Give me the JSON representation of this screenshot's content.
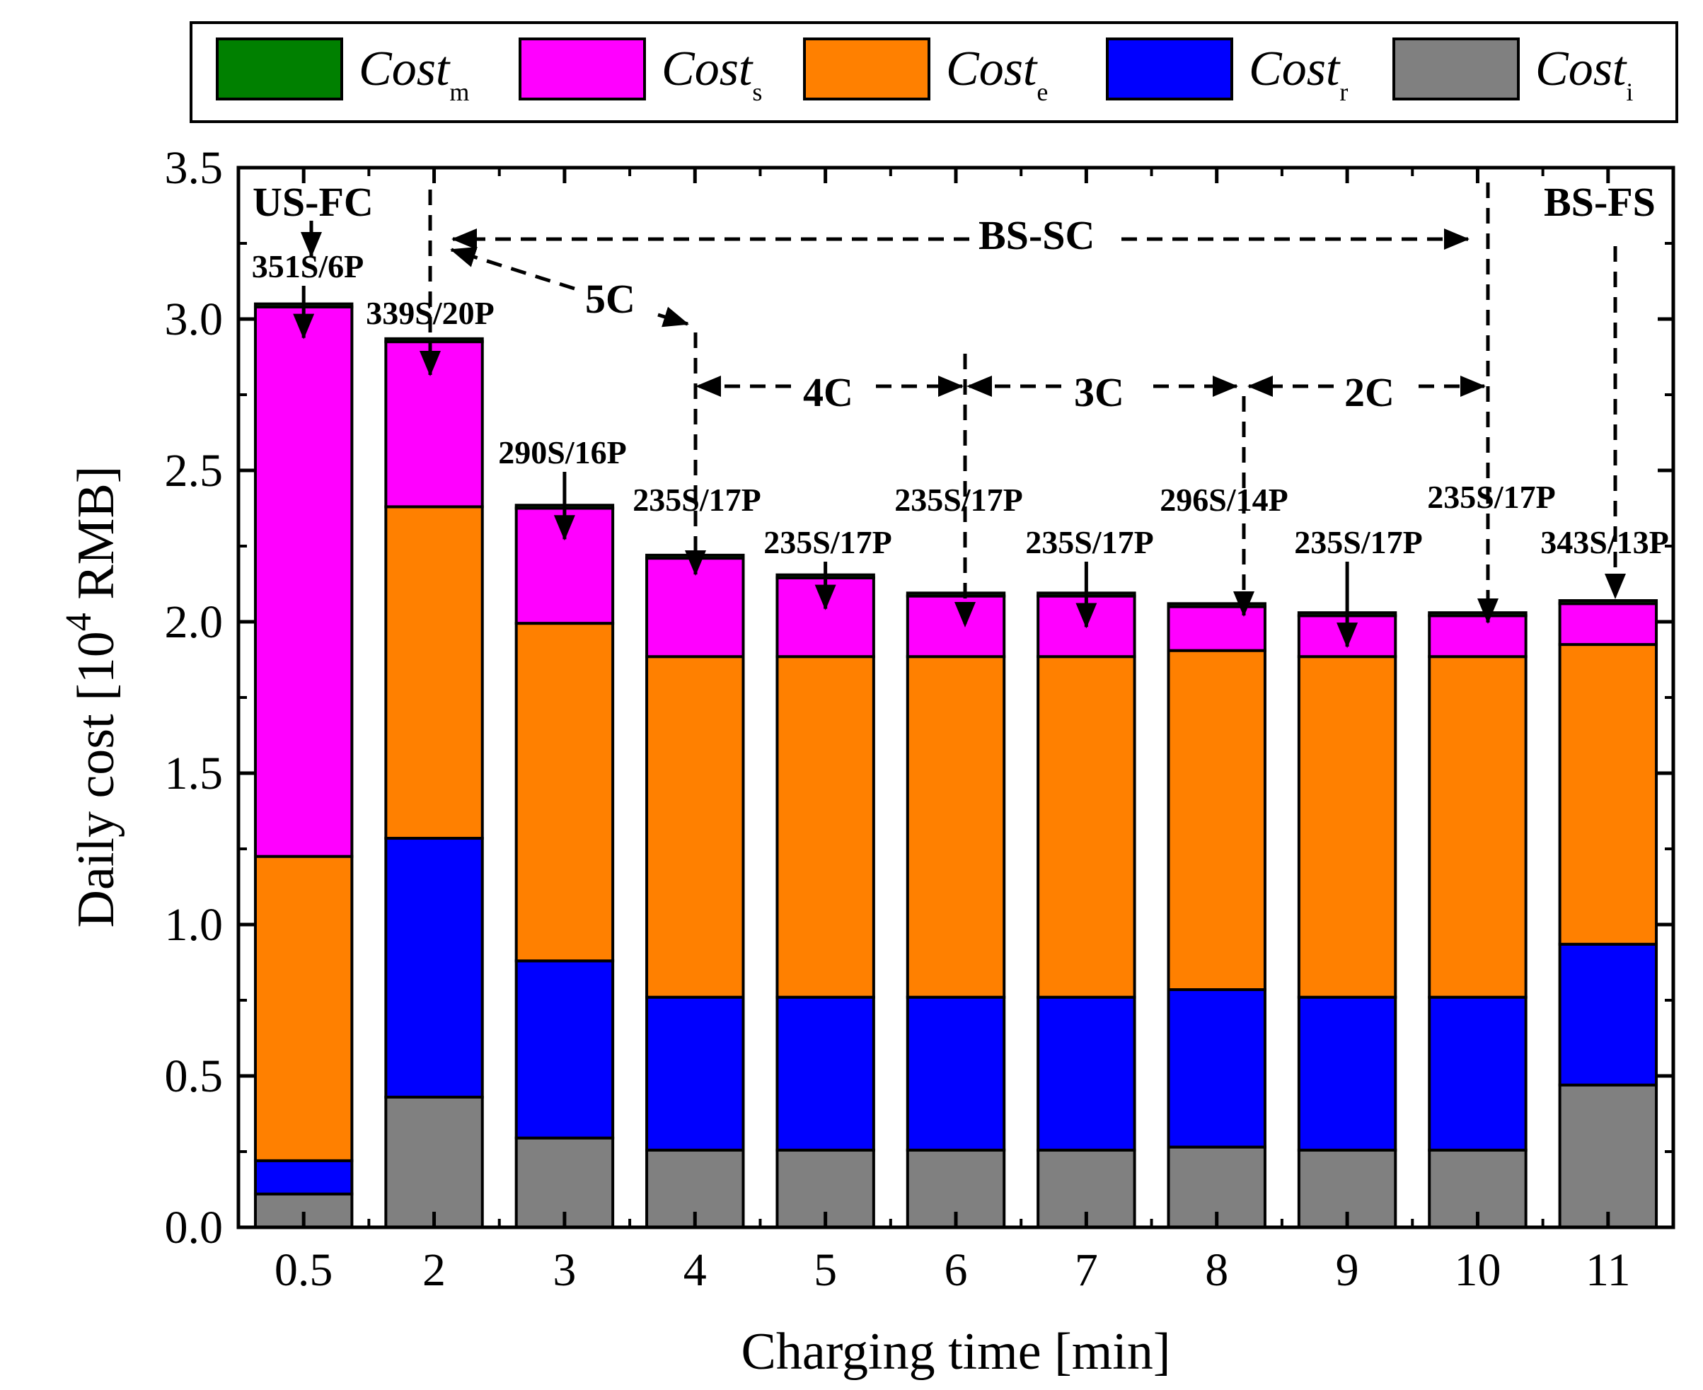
{
  "chart_data": {
    "type": "bar",
    "stacked": true,
    "title": "",
    "xlabel": "Charging time [min]",
    "ylabel_prefix": "Daily cost [10",
    "ylabel_exp": "4",
    "ylabel_suffix": " RMB]",
    "ylim": [
      0,
      3.5
    ],
    "yticks": [
      "0.0",
      "0.5",
      "1.0",
      "1.5",
      "2.0",
      "2.5",
      "3.0",
      "3.5"
    ],
    "categories": [
      "0.5",
      "2",
      "3",
      "4",
      "5",
      "6",
      "7",
      "8",
      "9",
      "10",
      "11"
    ],
    "legend_position": "top",
    "series": [
      {
        "name": "Cost",
        "sub": "i",
        "color": "#808080",
        "values": [
          0.11,
          0.43,
          0.295,
          0.255,
          0.255,
          0.255,
          0.255,
          0.265,
          0.255,
          0.255,
          0.47
        ]
      },
      {
        "name": "Cost",
        "sub": "r",
        "color": "#0000ff",
        "values": [
          0.11,
          0.855,
          0.585,
          0.505,
          0.505,
          0.505,
          0.505,
          0.52,
          0.505,
          0.505,
          0.465
        ]
      },
      {
        "name": "Cost",
        "sub": "e",
        "color": "#ff8000",
        "values": [
          1.005,
          1.095,
          1.115,
          1.125,
          1.125,
          1.125,
          1.125,
          1.12,
          1.125,
          1.125,
          0.99
        ]
      },
      {
        "name": "Cost",
        "sub": "s",
        "color": "#ff00ff",
        "values": [
          1.815,
          0.545,
          0.38,
          0.325,
          0.26,
          0.2,
          0.2,
          0.145,
          0.135,
          0.135,
          0.135
        ]
      },
      {
        "name": "Cost",
        "sub": "m",
        "color": "#008000",
        "values": [
          0.01,
          0.01,
          0.01,
          0.01,
          0.01,
          0.01,
          0.01,
          0.01,
          0.01,
          0.01,
          0.01
        ]
      }
    ],
    "legend_order": [
      "m",
      "s",
      "e",
      "r",
      "i"
    ],
    "bar_labels": [
      "351S/6P",
      "339S/20P",
      "290S/16P",
      "235S/17P",
      "235S/17P",
      "235S/17P",
      "235S/17P",
      "296S/14P",
      "235S/17P",
      "235S/17P",
      "343S/13P"
    ],
    "annotations": {
      "us_fc": "US-FC",
      "bs_sc": "BS-SC",
      "bs_fs": "BS-FS",
      "c5": "5C",
      "c4": "4C",
      "c3": "3C",
      "c2": "2C"
    }
  }
}
